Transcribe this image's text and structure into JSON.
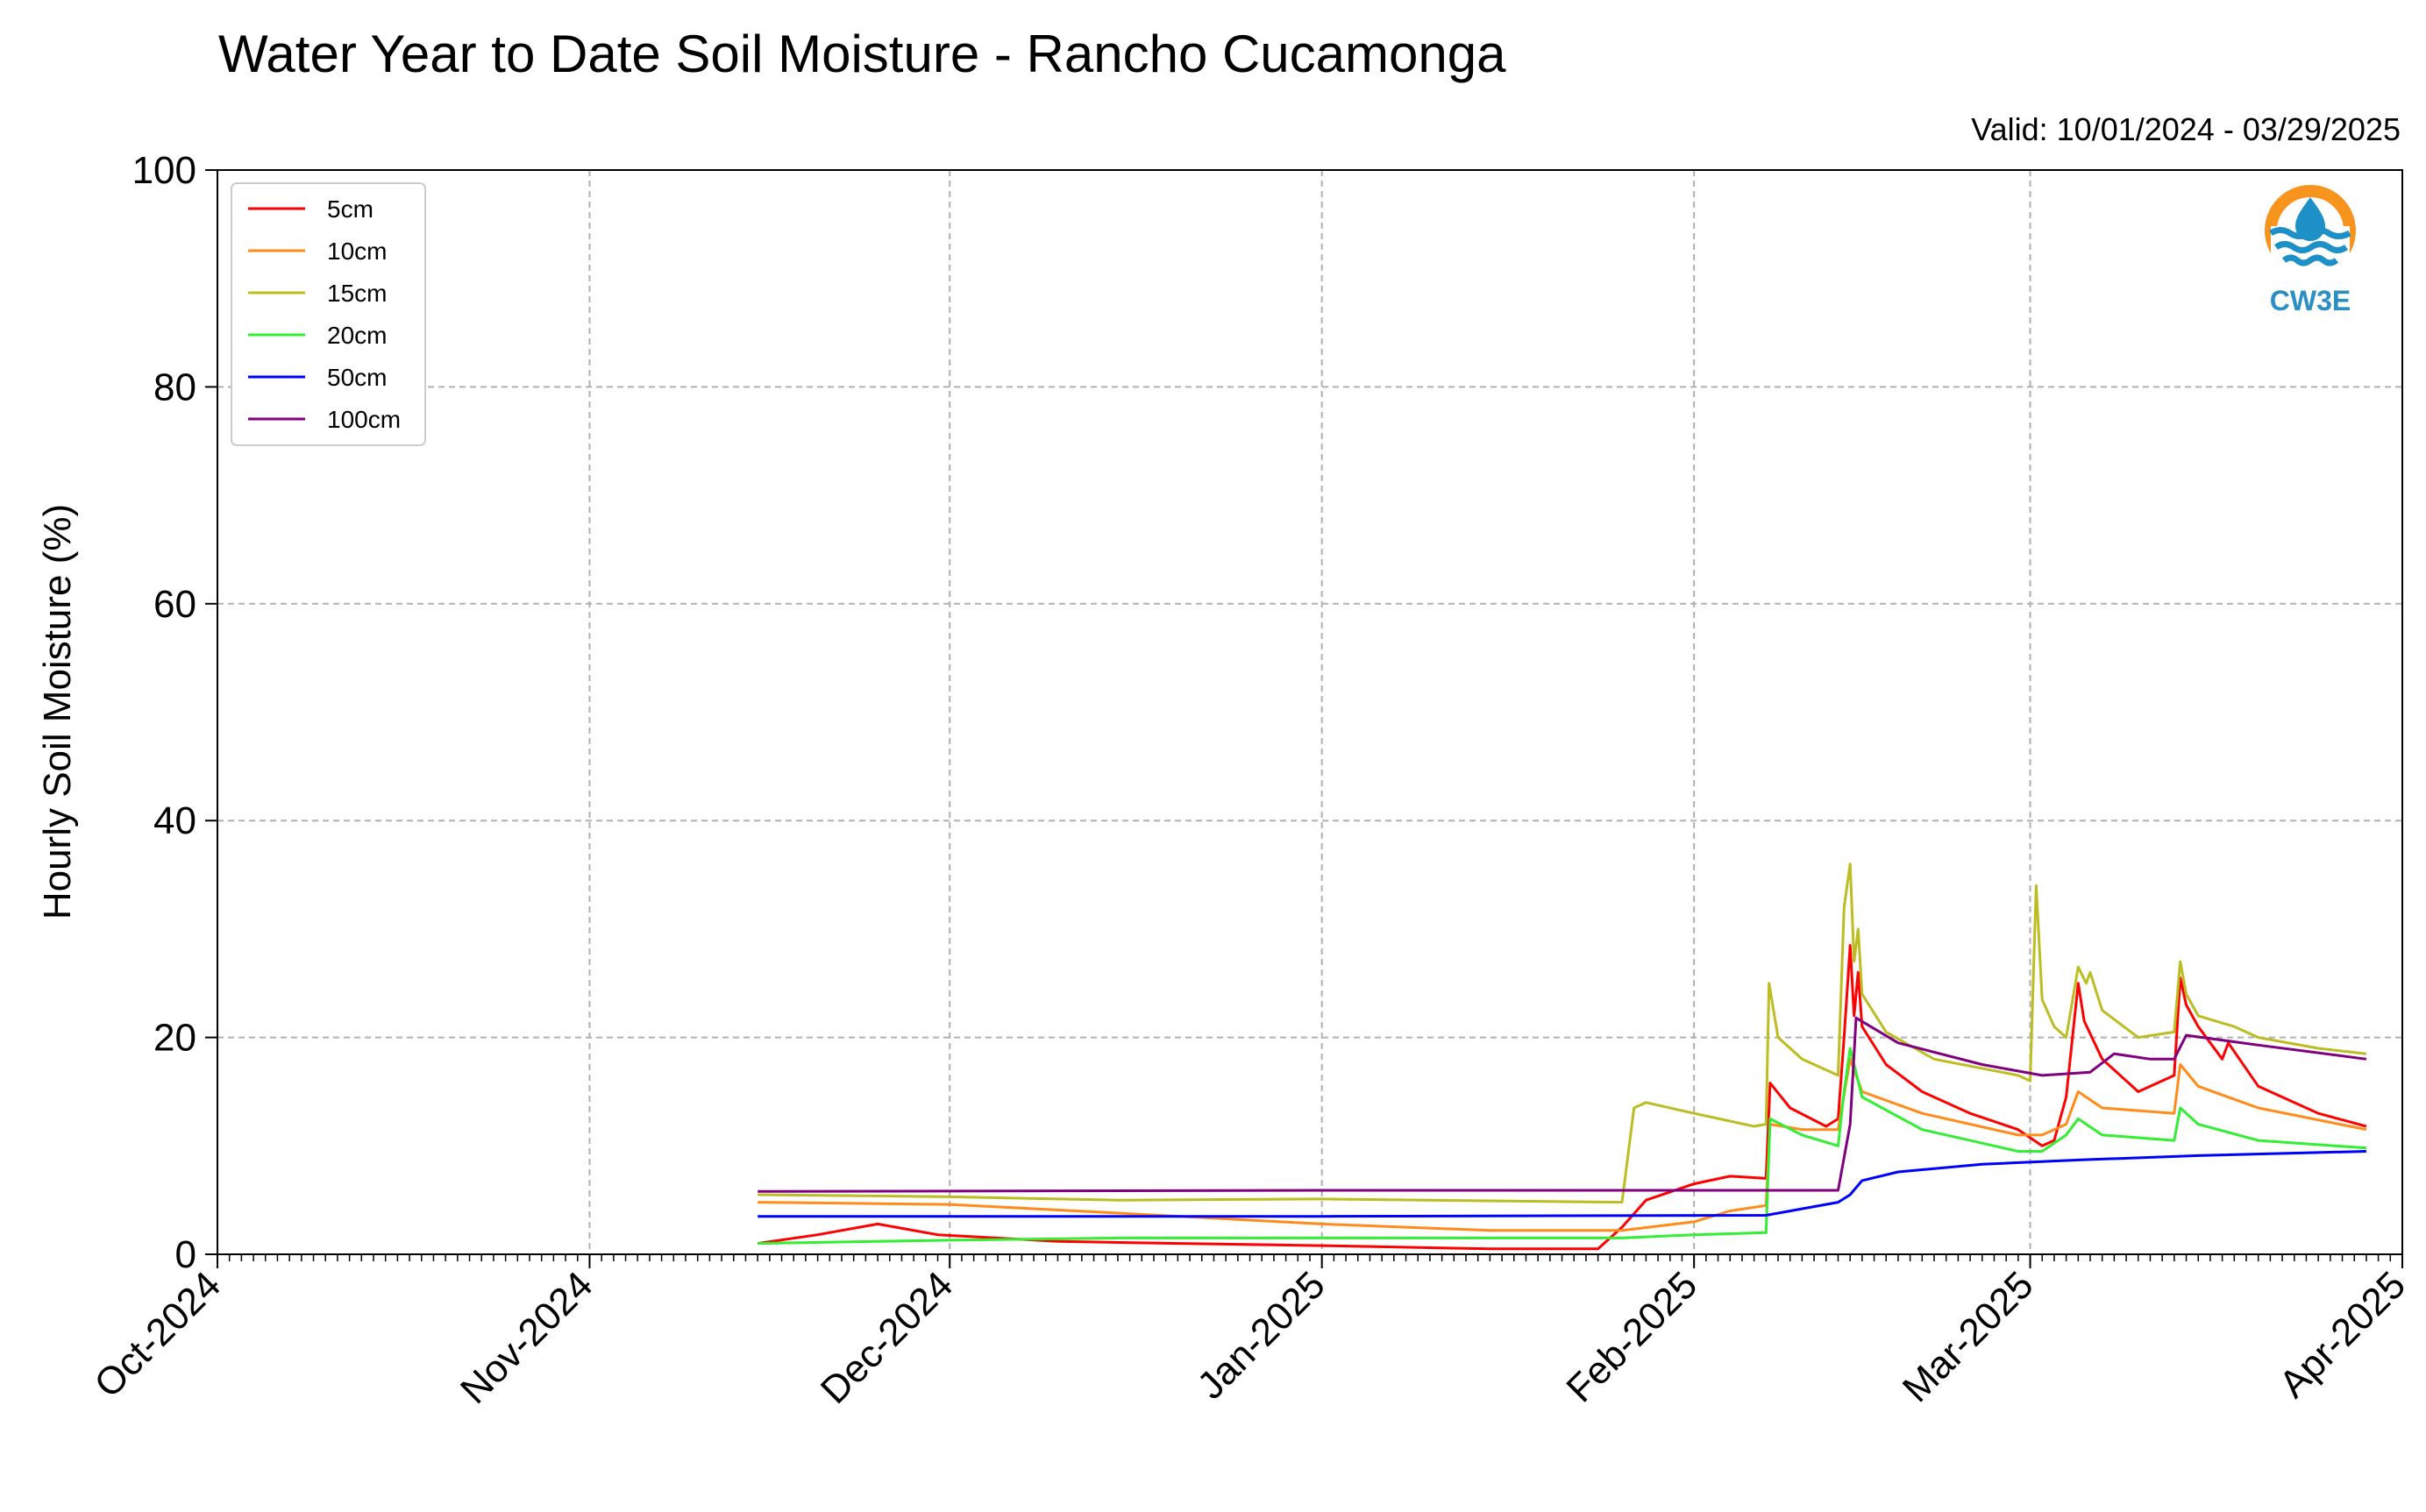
{
  "chart_data": {
    "type": "line",
    "title": "Water Year to Date Soil Moisture - Rancho Cucamonga",
    "subtitle": "Valid: 10/01/2024 - 03/29/2025",
    "xlabel": "",
    "ylabel": "Hourly Soil Moisture (%)",
    "xlim": [
      "2024-10-01",
      "2025-04-01"
    ],
    "ylim": [
      0,
      100
    ],
    "xticks": [
      {
        "date": "2024-10-01",
        "label": "Oct-2024"
      },
      {
        "date": "2024-11-01",
        "label": "Nov-2024"
      },
      {
        "date": "2024-12-01",
        "label": "Dec-2024"
      },
      {
        "date": "2025-01-01",
        "label": "Jan-2025"
      },
      {
        "date": "2025-02-01",
        "label": "Feb-2025"
      },
      {
        "date": "2025-03-01",
        "label": "Mar-2025"
      },
      {
        "date": "2025-04-01",
        "label": "Apr-2025"
      }
    ],
    "yticks": [
      0,
      20,
      40,
      60,
      80,
      100
    ],
    "grid": true,
    "legend_position": "top-left",
    "series": [
      {
        "name": "5cm",
        "color": "#ff0000",
        "points": [
          [
            "2024-11-15",
            1.0
          ],
          [
            "2024-11-20",
            1.8
          ],
          [
            "2024-11-25",
            2.8
          ],
          [
            "2024-11-30",
            1.8
          ],
          [
            "2024-12-10",
            1.2
          ],
          [
            "2024-12-20",
            1.0
          ],
          [
            "2025-01-01",
            0.8
          ],
          [
            "2025-01-15",
            0.5
          ],
          [
            "2025-01-24",
            0.5
          ],
          [
            "2025-01-26",
            2.5
          ],
          [
            "2025-01-28",
            5.0
          ],
          [
            "2025-02-01",
            6.5
          ],
          [
            "2025-02-04",
            7.2
          ],
          [
            "2025-02-07",
            7.0
          ],
          [
            "2025-02-07T08",
            15.8
          ],
          [
            "2025-02-09",
            13.5
          ],
          [
            "2025-02-12",
            11.8
          ],
          [
            "2025-02-13",
            12.5
          ],
          [
            "2025-02-13T12",
            20.0
          ],
          [
            "2025-02-14",
            28.5
          ],
          [
            "2025-02-14T08",
            22.0
          ],
          [
            "2025-02-14T16",
            26.0
          ],
          [
            "2025-02-15",
            21.0
          ],
          [
            "2025-02-17",
            17.5
          ],
          [
            "2025-02-20",
            15.0
          ],
          [
            "2025-02-24",
            13.0
          ],
          [
            "2025-02-28",
            11.5
          ],
          [
            "2025-03-02",
            10.0
          ],
          [
            "2025-03-03",
            10.5
          ],
          [
            "2025-03-04",
            14.5
          ],
          [
            "2025-03-05",
            25.0
          ],
          [
            "2025-03-05T12",
            21.5
          ],
          [
            "2025-03-07",
            18.0
          ],
          [
            "2025-03-10",
            15.0
          ],
          [
            "2025-03-13",
            16.5
          ],
          [
            "2025-03-13T12",
            25.5
          ],
          [
            "2025-03-14",
            23.0
          ],
          [
            "2025-03-15",
            21.0
          ],
          [
            "2025-03-17",
            18.0
          ],
          [
            "2025-03-17T12",
            19.5
          ],
          [
            "2025-03-20",
            15.5
          ],
          [
            "2025-03-25",
            13.0
          ],
          [
            "2025-03-29",
            11.8
          ]
        ]
      },
      {
        "name": "10cm",
        "color": "#ff8c1a",
        "points": [
          [
            "2024-11-15",
            4.8
          ],
          [
            "2024-12-01",
            4.6
          ],
          [
            "2024-12-15",
            3.8
          ],
          [
            "2025-01-01",
            2.8
          ],
          [
            "2025-01-15",
            2.2
          ],
          [
            "2025-01-26",
            2.2
          ],
          [
            "2025-02-01",
            3.0
          ],
          [
            "2025-02-04",
            4.0
          ],
          [
            "2025-02-07",
            4.5
          ],
          [
            "2025-02-07T08",
            12.0
          ],
          [
            "2025-02-10",
            11.5
          ],
          [
            "2025-02-13",
            11.5
          ],
          [
            "2025-02-14",
            18.0
          ],
          [
            "2025-02-15",
            15.0
          ],
          [
            "2025-02-20",
            13.0
          ],
          [
            "2025-02-28",
            11.0
          ],
          [
            "2025-03-02",
            11.0
          ],
          [
            "2025-03-04",
            12.0
          ],
          [
            "2025-03-05",
            15.0
          ],
          [
            "2025-03-07",
            13.5
          ],
          [
            "2025-03-13",
            13.0
          ],
          [
            "2025-03-13T12",
            17.5
          ],
          [
            "2025-03-15",
            15.5
          ],
          [
            "2025-03-20",
            13.5
          ],
          [
            "2025-03-29",
            11.5
          ]
        ]
      },
      {
        "name": "15cm",
        "color": "#bcbd22",
        "points": [
          [
            "2024-11-15",
            5.5
          ],
          [
            "2024-12-01",
            5.3
          ],
          [
            "2024-12-15",
            5.0
          ],
          [
            "2025-01-01",
            5.1
          ],
          [
            "2025-01-26",
            4.8
          ],
          [
            "2025-01-27",
            13.5
          ],
          [
            "2025-01-28",
            14.0
          ],
          [
            "2025-02-01",
            13.0
          ],
          [
            "2025-02-06",
            11.8
          ],
          [
            "2025-02-07",
            12.0
          ],
          [
            "2025-02-07T06",
            25.0
          ],
          [
            "2025-02-08",
            20.0
          ],
          [
            "2025-02-10",
            18.0
          ],
          [
            "2025-02-13",
            16.5
          ],
          [
            "2025-02-13T12",
            32.0
          ],
          [
            "2025-02-14",
            36.0
          ],
          [
            "2025-02-14T08",
            27.0
          ],
          [
            "2025-02-14T16",
            30.0
          ],
          [
            "2025-02-15",
            24.0
          ],
          [
            "2025-02-17",
            20.5
          ],
          [
            "2025-02-21",
            18.0
          ],
          [
            "2025-02-28",
            16.5
          ],
          [
            "2025-03-01",
            16.0
          ],
          [
            "2025-03-01T12",
            34.0
          ],
          [
            "2025-03-02",
            23.5
          ],
          [
            "2025-03-03",
            21.0
          ],
          [
            "2025-03-04",
            20.0
          ],
          [
            "2025-03-05",
            26.5
          ],
          [
            "2025-03-05T16",
            25.0
          ],
          [
            "2025-03-06",
            26.0
          ],
          [
            "2025-03-07",
            22.5
          ],
          [
            "2025-03-10",
            20.0
          ],
          [
            "2025-03-13",
            20.5
          ],
          [
            "2025-03-13T12",
            27.0
          ],
          [
            "2025-03-14",
            24.0
          ],
          [
            "2025-03-15",
            22.0
          ],
          [
            "2025-03-18",
            21.0
          ],
          [
            "2025-03-20",
            20.0
          ],
          [
            "2025-03-25",
            19.0
          ],
          [
            "2025-03-29",
            18.5
          ]
        ]
      },
      {
        "name": "20cm",
        "color": "#33ee33",
        "points": [
          [
            "2024-11-15",
            1.0
          ],
          [
            "2024-12-01",
            1.3
          ],
          [
            "2024-12-15",
            1.5
          ],
          [
            "2025-01-01",
            1.5
          ],
          [
            "2025-01-26",
            1.5
          ],
          [
            "2025-02-01",
            1.8
          ],
          [
            "2025-02-07",
            2.0
          ],
          [
            "2025-02-07T08",
            12.5
          ],
          [
            "2025-02-10",
            11.0
          ],
          [
            "2025-02-13",
            10.0
          ],
          [
            "2025-02-13T12",
            15.0
          ],
          [
            "2025-02-14",
            19.0
          ],
          [
            "2025-02-15",
            14.5
          ],
          [
            "2025-02-20",
            11.5
          ],
          [
            "2025-02-28",
            9.5
          ],
          [
            "2025-03-02",
            9.5
          ],
          [
            "2025-03-04",
            11.0
          ],
          [
            "2025-03-05",
            12.5
          ],
          [
            "2025-03-07",
            11.0
          ],
          [
            "2025-03-13",
            10.5
          ],
          [
            "2025-03-13T12",
            13.5
          ],
          [
            "2025-03-15",
            12.0
          ],
          [
            "2025-03-20",
            10.5
          ],
          [
            "2025-03-29",
            9.8
          ]
        ]
      },
      {
        "name": "50cm",
        "color": "#0000ff",
        "points": [
          [
            "2024-11-15",
            3.5
          ],
          [
            "2025-01-01",
            3.5
          ],
          [
            "2025-02-07",
            3.6
          ],
          [
            "2025-02-13",
            4.8
          ],
          [
            "2025-02-14",
            5.5
          ],
          [
            "2025-02-15",
            6.8
          ],
          [
            "2025-02-18",
            7.6
          ],
          [
            "2025-02-25",
            8.3
          ],
          [
            "2025-03-05",
            8.7
          ],
          [
            "2025-03-15",
            9.1
          ],
          [
            "2025-03-29",
            9.5
          ]
        ]
      },
      {
        "name": "100cm",
        "color": "#800080",
        "points": [
          [
            "2024-11-15",
            5.8
          ],
          [
            "2025-01-01",
            5.9
          ],
          [
            "2025-02-13",
            5.9
          ],
          [
            "2025-02-14",
            12.0
          ],
          [
            "2025-02-14T12",
            21.8
          ],
          [
            "2025-02-18",
            19.5
          ],
          [
            "2025-02-25",
            17.5
          ],
          [
            "2025-03-02",
            16.5
          ],
          [
            "2025-03-06",
            16.8
          ],
          [
            "2025-03-08",
            18.5
          ],
          [
            "2025-03-11",
            18.0
          ],
          [
            "2025-03-13",
            18.0
          ],
          [
            "2025-03-14",
            20.2
          ],
          [
            "2025-03-20",
            19.3
          ],
          [
            "2025-03-29",
            18.0
          ]
        ]
      }
    ]
  },
  "logo": {
    "text": "CW3E",
    "ring_color": "#f7941d",
    "wave_color": "#1e90c8",
    "text_color": "#2a8fc4"
  }
}
